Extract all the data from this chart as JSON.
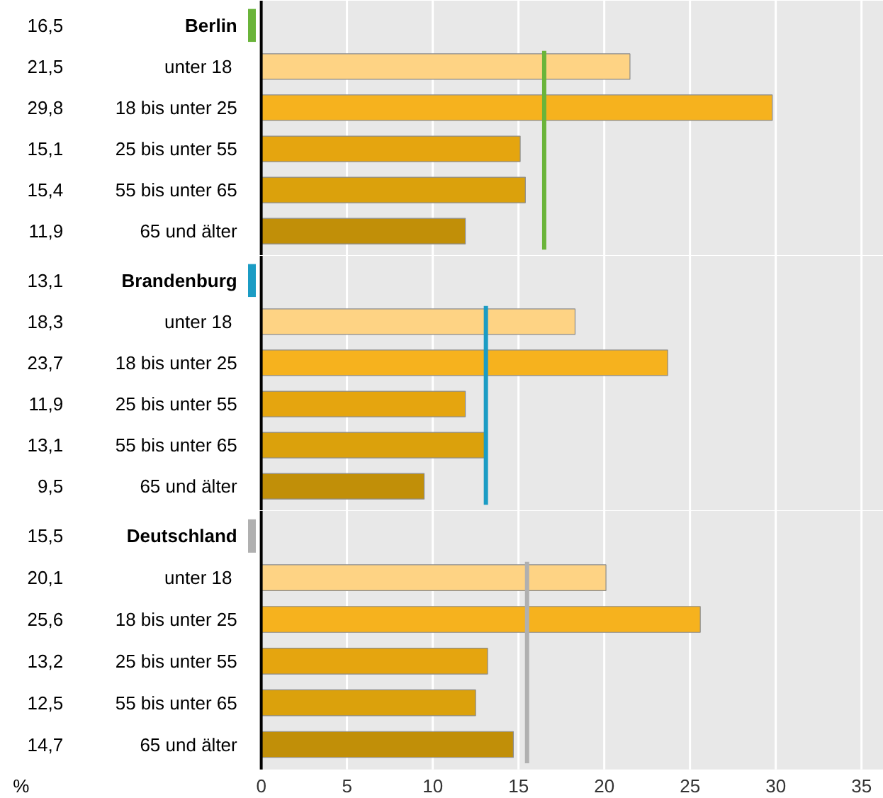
{
  "chart_data": [
    {
      "type": "bar",
      "orientation": "horizontal",
      "categories": [
        null,
        "unter  18",
        "18 bis unter 25",
        "25 bis unter 55",
        "55 bis unter 65",
        "65 und älter"
      ],
      "values": [
        null,
        21.5,
        29.8,
        15.1,
        15.4,
        11.9
      ],
      "value_labels": [
        "16,5",
        "21,5",
        "29,8",
        "15,1",
        "15,4",
        "11,9"
      ],
      "colors": [
        null,
        "#fed384",
        "#f6b21e",
        "#e5a50f",
        "#dba10c",
        "#c18f08"
      ],
      "ref_lines": [
        {
          "axis": "x",
          "value": 16.5,
          "label": "Berlin",
          "color": "#6ab43a"
        }
      ],
      "xlim": [
        0,
        35
      ],
      "xticks": [
        0,
        5,
        10,
        15,
        20,
        25,
        30,
        35
      ],
      "grid": "x",
      "tick_labels": "y"
    },
    {
      "type": "bar",
      "orientation": "horizontal",
      "categories": [
        null,
        "unter  18",
        "18 bis unter 25",
        "25 bis unter 55",
        "55 bis unter 65",
        "65 und älter"
      ],
      "values": [
        null,
        18.3,
        23.7,
        11.9,
        13.1,
        9.5
      ],
      "value_labels": [
        "13,1",
        "18,3",
        "23,7",
        "11,9",
        "13,1",
        "9,5"
      ],
      "colors": [
        null,
        "#fed384",
        "#f6b21e",
        "#e5a50f",
        "#dba10c",
        "#c18f08"
      ],
      "ref_lines": [
        {
          "axis": "x",
          "value": 13.1,
          "label": "Brandenburg",
          "color": "#1b9cc4"
        }
      ],
      "xlim": [
        0,
        35
      ],
      "xticks": [
        0,
        5,
        10,
        15,
        20,
        25,
        30,
        35
      ],
      "grid": "x",
      "tick_labels": "y"
    },
    {
      "type": "bar",
      "orientation": "horizontal",
      "xlabel": "%",
      "categories": [
        null,
        "unter  18",
        "18 bis unter 25",
        "25 bis unter 55",
        "55 bis unter 65",
        "65 und älter"
      ],
      "values": [
        null,
        20.1,
        25.6,
        13.2,
        12.5,
        14.7
      ],
      "value_labels": [
        "15,5",
        "20,1",
        "25,6",
        "13,2",
        "12,5",
        "14,7"
      ],
      "colors": [
        null,
        "#fed384",
        "#f6b21e",
        "#e5a50f",
        "#dba10c",
        "#c18f08"
      ],
      "ref_lines": [
        {
          "axis": "x",
          "value": 15.5,
          "label": "Deutschland",
          "color": "#b0b0b0"
        }
      ],
      "xlim": [
        0,
        35
      ],
      "xticks": [
        0,
        5,
        10,
        15,
        20,
        25,
        30,
        35
      ],
      "grid": "x"
    }
  ]
}
